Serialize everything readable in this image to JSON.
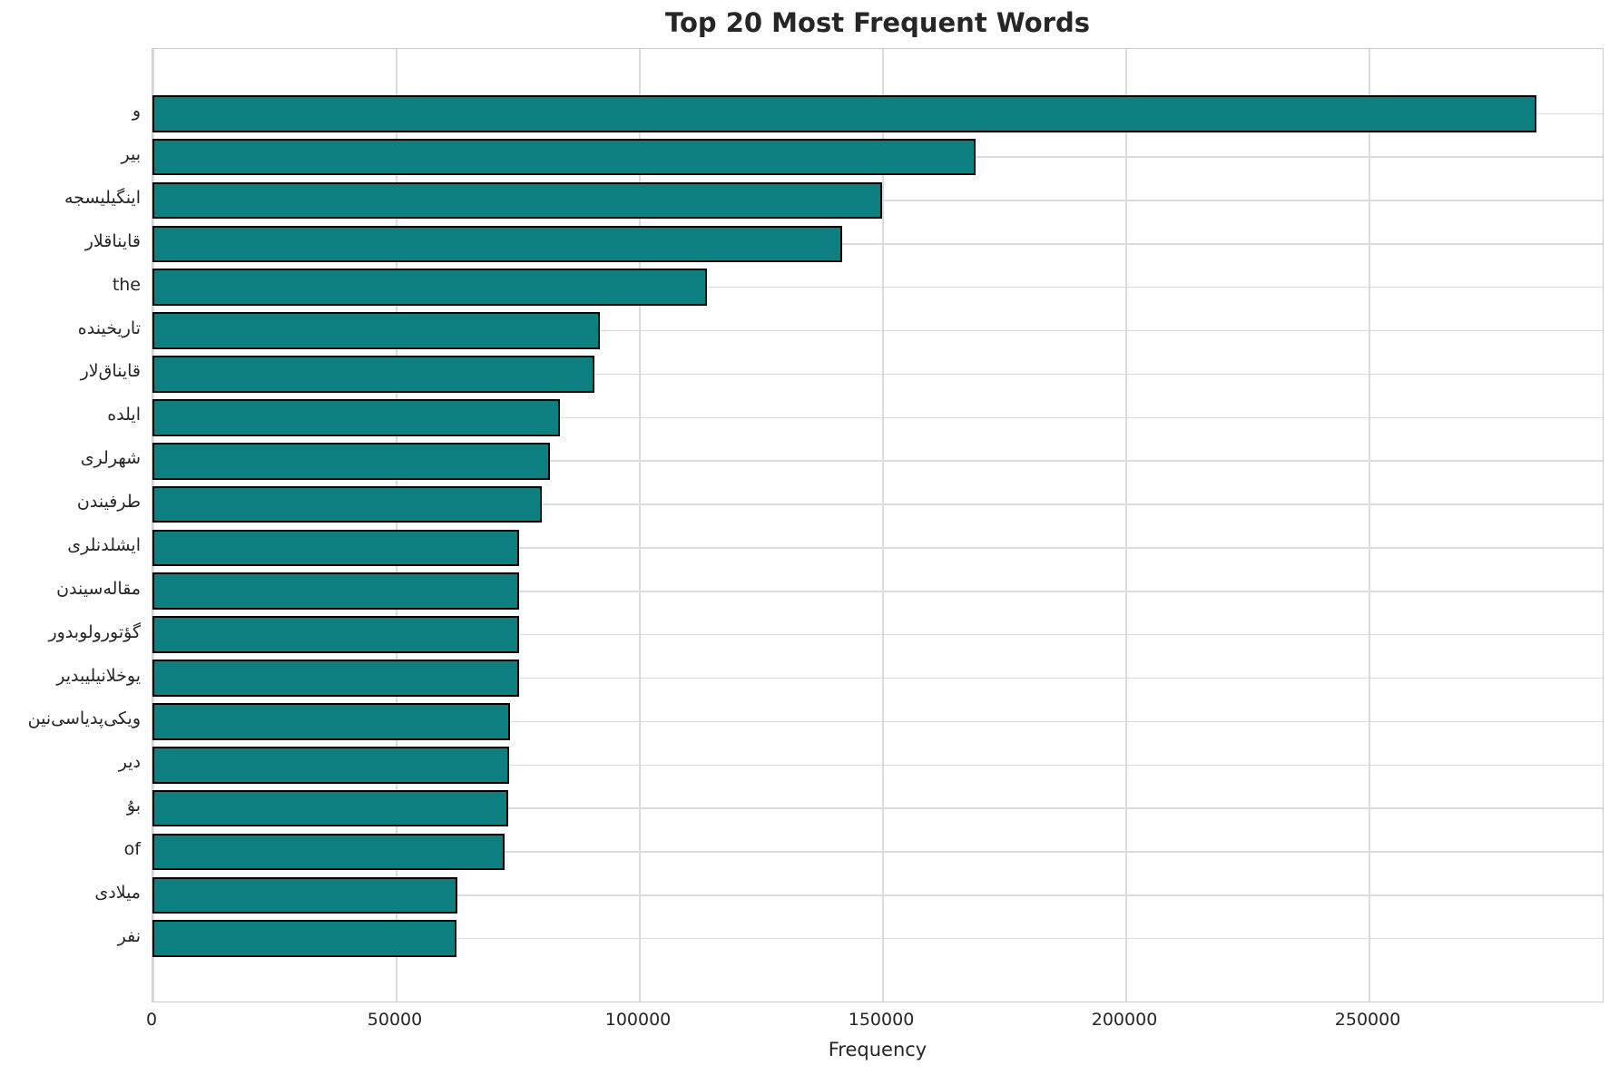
{
  "chart_data": {
    "type": "bar",
    "orientation": "horizontal",
    "title": "Top 20 Most Frequent Words",
    "xlabel": "Frequency",
    "ylabel": "",
    "categories": [
      "و",
      "بیر",
      "اینگیلیسجه",
      "قایناقلار",
      "the",
      "تاریخینده",
      "قایناق‌لار",
      "ایلده",
      "شهرلری",
      "طرفیندن",
      "ایشلدنلری",
      "مقاله‌سیندن",
      "گؤتورولوبدور",
      "یوخلانیلیبدیر",
      "ویکی‌پدیاسی‌نین",
      "دیر",
      "بۇ",
      "of",
      "میلادی",
      "نفر"
    ],
    "values": [
      284500,
      169200,
      150000,
      141800,
      114000,
      92000,
      90900,
      83800,
      81700,
      80000,
      75400,
      75400,
      75300,
      75300,
      73500,
      73300,
      73100,
      72400,
      62700,
      62500
    ],
    "xlim": [
      0,
      298500
    ],
    "xticks": [
      0,
      50000,
      100000,
      150000,
      200000,
      250000
    ],
    "xtick_labels": [
      "0",
      "50000",
      "100000",
      "150000",
      "200000",
      "250000"
    ],
    "grid": true,
    "legend": false,
    "bar_color": "#0e7f81",
    "bar_edge_color": "#000000",
    "grid_color": "#dcdcdc"
  }
}
